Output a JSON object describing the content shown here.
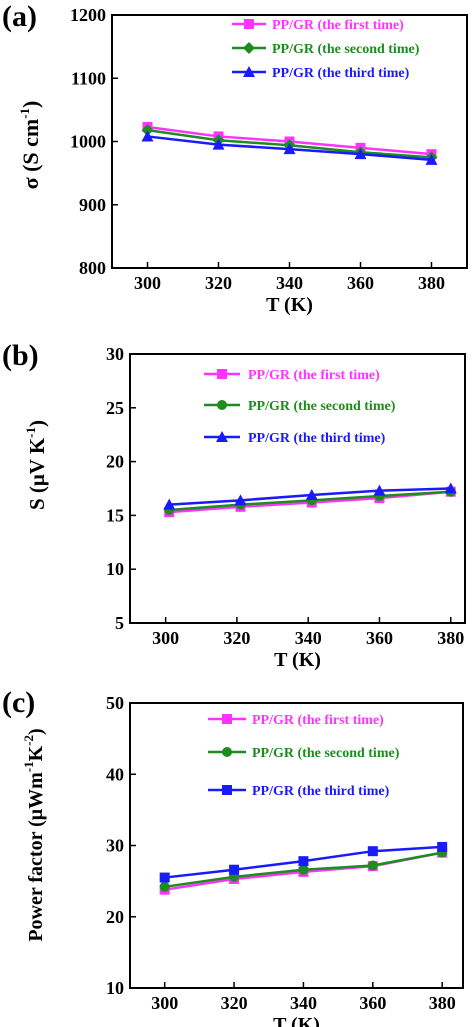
{
  "colors": {
    "first": "#ff33ff",
    "second": "#1e8c1e",
    "third": "#1a1aff",
    "axis": "#000000"
  },
  "chart_data": [
    {
      "type": "line",
      "panel_label": "(a)",
      "xlabel": "T (K)",
      "ylabel_main": "σ (S cm",
      "ylabel_sup": "-1",
      "ylabel_close": ")",
      "xlim": [
        290,
        390
      ],
      "ylim": [
        800,
        1200
      ],
      "xticks": [
        300,
        320,
        340,
        360,
        380
      ],
      "yticks": [
        800,
        900,
        1000,
        1100,
        1200
      ],
      "x": [
        300,
        320,
        340,
        360,
        380
      ],
      "legend_position": "top-right",
      "series": [
        {
          "name": "PP/GR (the first time)",
          "color_key": "first",
          "marker": "square",
          "values": [
            1023,
            1008,
            1000,
            990,
            980
          ]
        },
        {
          "name": "PP/GR (the second time)",
          "color_key": "second",
          "marker": "diamond",
          "values": [
            1018,
            1002,
            994,
            983,
            975
          ]
        },
        {
          "name": "PP/GR (the third time)",
          "color_key": "third",
          "marker": "triangle",
          "values": [
            1008,
            995,
            988,
            980,
            971
          ]
        }
      ]
    },
    {
      "type": "line",
      "panel_label": "(b)",
      "xlabel": "T (K)",
      "ylabel_main": "S (μV K",
      "ylabel_sup": "-1",
      "ylabel_close": ")",
      "xlim": [
        290,
        384
      ],
      "ylim": [
        5,
        30
      ],
      "xticks": [
        300,
        320,
        340,
        360,
        380
      ],
      "yticks": [
        5,
        10,
        15,
        20,
        25,
        30
      ],
      "x": [
        301,
        321,
        341,
        360,
        380
      ],
      "legend_position": "top-right",
      "series": [
        {
          "name": "PP/GR (the first time)",
          "color_key": "first",
          "marker": "square",
          "values": [
            15.3,
            15.8,
            16.2,
            16.6,
            17.2
          ]
        },
        {
          "name": "PP/GR (the second time)",
          "color_key": "second",
          "marker": "circle",
          "values": [
            15.5,
            16.0,
            16.4,
            16.8,
            17.2
          ]
        },
        {
          "name": "PP/GR (the third time)",
          "color_key": "third",
          "marker": "triangle",
          "values": [
            16.0,
            16.4,
            16.9,
            17.3,
            17.5
          ]
        }
      ]
    },
    {
      "type": "line",
      "panel_label": "(c)",
      "xlabel": "T (K)",
      "ylabel_main": "Power factor (μWm",
      "ylabel_sup1": "-1",
      "ylabel_mid": "K",
      "ylabel_sup2": "-2",
      "ylabel_close": ")",
      "xlim": [
        290,
        386
      ],
      "ylim": [
        10,
        50
      ],
      "xticks": [
        300,
        320,
        340,
        360,
        380
      ],
      "yticks": [
        10,
        20,
        30,
        40,
        50
      ],
      "x": [
        300,
        320,
        340,
        360,
        380
      ],
      "legend_position": "top-right",
      "series": [
        {
          "name": "PP/GR (the first time)",
          "color_key": "first",
          "marker": "square",
          "values": [
            23.8,
            25.3,
            26.3,
            27.1,
            29.0
          ]
        },
        {
          "name": "PP/GR (the second time)",
          "color_key": "second",
          "marker": "circle",
          "values": [
            24.2,
            25.6,
            26.6,
            27.2,
            29.0
          ]
        },
        {
          "name": "PP/GR (the third time)",
          "color_key": "third",
          "marker": "square",
          "values": [
            25.5,
            26.6,
            27.8,
            29.2,
            29.8
          ]
        }
      ]
    }
  ]
}
